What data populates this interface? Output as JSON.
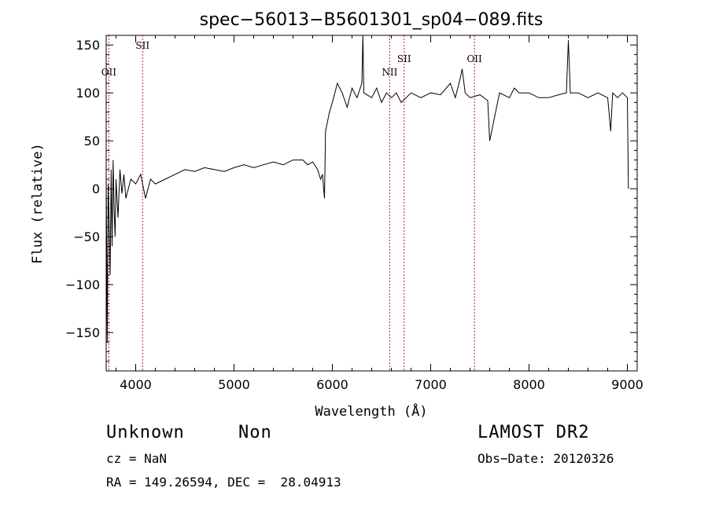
{
  "chart_data": {
    "type": "line",
    "title": "spec−56013−B5601301_sp04−089.fits",
    "xlabel": "Wavelength (Å)",
    "ylabel": "Flux (relative)",
    "xlim": [
      3700,
      9100
    ],
    "ylim": [
      -190,
      160
    ],
    "x_ticks": [
      4000,
      5000,
      6000,
      7000,
      8000,
      9000
    ],
    "x_tick_labels": [
      "4000",
      "5000",
      "6000",
      "7000",
      "8000",
      "9000"
    ],
    "y_ticks": [
      150,
      100,
      50,
      0,
      -50,
      -100,
      -150
    ],
    "y_tick_labels": [
      "150",
      "100",
      "50",
      "0",
      "−50",
      "−100",
      "−150"
    ],
    "grid": false,
    "series": [
      {
        "color": "#000000",
        "x": [
          3700,
          3710,
          3720,
          3730,
          3740,
          3750,
          3760,
          3770,
          3780,
          3790,
          3800,
          3820,
          3840,
          3860,
          3880,
          3900,
          3950,
          4000,
          4050,
          4100,
          4150,
          4200,
          4300,
          4400,
          4500,
          4600,
          4700,
          4800,
          4900,
          5000,
          5100,
          5200,
          5300,
          5400,
          5500,
          5600,
          5700,
          5750,
          5800,
          5850,
          5880,
          5900,
          5920,
          5930,
          5950,
          5970,
          6000,
          6050,
          6100,
          6150,
          6200,
          6250,
          6300,
          6310,
          6320,
          6400,
          6450,
          6500,
          6550,
          6600,
          6650,
          6700,
          6750,
          6800,
          6900,
          7000,
          7100,
          7200,
          7250,
          7300,
          7320,
          7350,
          7400,
          7500,
          7580,
          7600,
          7700,
          7800,
          7850,
          7900,
          8000,
          8100,
          8200,
          8300,
          8380,
          8400,
          8420,
          8500,
          8600,
          8700,
          8800,
          8830,
          8850,
          8900,
          8950,
          9000,
          9010
        ],
        "y": [
          15,
          -160,
          5,
          -40,
          -90,
          20,
          -60,
          30,
          -20,
          -50,
          10,
          -30,
          20,
          -5,
          15,
          -10,
          10,
          5,
          15,
          -10,
          10,
          5,
          10,
          15,
          20,
          18,
          22,
          20,
          18,
          22,
          25,
          22,
          25,
          28,
          25,
          30,
          30,
          25,
          28,
          20,
          10,
          15,
          -10,
          60,
          70,
          80,
          90,
          110,
          100,
          85,
          105,
          95,
          110,
          160,
          100,
          95,
          105,
          90,
          100,
          95,
          100,
          90,
          95,
          100,
          95,
          100,
          98,
          110,
          95,
          115,
          125,
          100,
          95,
          98,
          92,
          50,
          100,
          95,
          105,
          100,
          100,
          95,
          95,
          98,
          100,
          155,
          100,
          100,
          95,
          100,
          95,
          60,
          100,
          95,
          100,
          95,
          0
        ]
      }
    ],
    "line_markers": [
      {
        "label": "OII",
        "wavelength": 3727,
        "label_row": "low"
      },
      {
        "label": "SII",
        "wavelength": 4070,
        "label_row": "high"
      },
      {
        "label": "NII",
        "wavelength": 6583,
        "label_row": "low"
      },
      {
        "label": "SII",
        "wavelength": 6730,
        "label_row": "mid"
      },
      {
        "label": "OII",
        "wavelength": 7445,
        "label_row": "mid"
      }
    ],
    "marker_color": "#b22222"
  },
  "info": {
    "class_label": "Unknown",
    "subclass_label": "Non",
    "cz": "cz = NaN",
    "radec": "RA = 149.26594, DEC =  28.04913",
    "survey": "LAMOST DR2",
    "obs_date": "Obs−Date: 20120326"
  }
}
